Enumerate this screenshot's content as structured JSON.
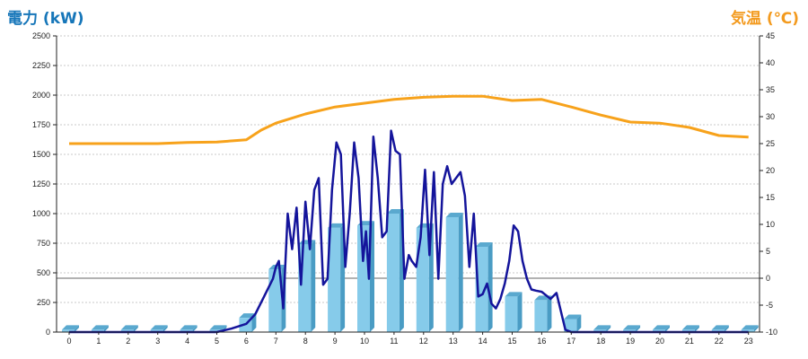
{
  "chart_data": {
    "type": "bar",
    "left_axis_title": "電力 (kW)",
    "right_axis_title": "気温 (℃)",
    "categories": [
      "0",
      "1",
      "2",
      "3",
      "4",
      "5",
      "6",
      "7",
      "8",
      "9",
      "10",
      "11",
      "12",
      "13",
      "14",
      "15",
      "16",
      "17",
      "18",
      "19",
      "20",
      "21",
      "22",
      "23"
    ],
    "y_left": {
      "min": 0,
      "max": 2500,
      "ticks": [
        "0",
        "250",
        "500",
        "750",
        "1000",
        "1250",
        "1500",
        "1750",
        "2000",
        "2250",
        "2500"
      ]
    },
    "y_right": {
      "min": -10,
      "max": 45,
      "ticks": [
        "-10",
        "-5",
        "0",
        "5",
        "10",
        "15",
        "20",
        "25",
        "30",
        "35",
        "40",
        "45"
      ]
    },
    "grid": true,
    "zero_line_right": 0,
    "colors": {
      "bars": "#86cbea",
      "bars_side": "#4a9cc4",
      "power_line": "#14149b",
      "temperature_line": "#f7a21b",
      "left_title": "#1676b9",
      "right_title": "#f39a1e"
    },
    "bar_values": [
      20,
      20,
      20,
      20,
      20,
      20,
      120,
      530,
      740,
      880,
      900,
      1000,
      880,
      970,
      720,
      300,
      270,
      110,
      20,
      20,
      20,
      20,
      20,
      20
    ],
    "power_line": {
      "x": [
        0,
        5,
        5.5,
        6,
        6.3,
        6.6,
        6.9,
        7,
        7.1,
        7.25,
        7.4,
        7.55,
        7.7,
        7.85,
        8,
        8.15,
        8.3,
        8.45,
        8.6,
        8.75,
        8.9,
        9.05,
        9.2,
        9.35,
        9.5,
        9.65,
        9.8,
        9.95,
        10.05,
        10.15,
        10.3,
        10.45,
        10.6,
        10.75,
        10.9,
        11.05,
        11.2,
        11.35,
        11.5,
        11.6,
        11.75,
        11.9,
        12.05,
        12.2,
        12.35,
        12.5,
        12.65,
        12.8,
        12.95,
        13.1,
        13.25,
        13.4,
        13.55,
        13.7,
        13.85,
        14,
        14.15,
        14.3,
        14.45,
        14.6,
        14.75,
        14.9,
        15.05,
        15.2,
        15.35,
        15.5,
        15.65,
        15.8,
        16,
        16.3,
        16.5,
        16.8,
        17,
        17.3,
        18,
        23
      ],
      "values": [
        0,
        0,
        30,
        70,
        150,
        300,
        450,
        550,
        600,
        200,
        1000,
        700,
        1050,
        400,
        1100,
        700,
        1200,
        1300,
        400,
        450,
        1200,
        1600,
        1500,
        550,
        1000,
        1600,
        1300,
        600,
        850,
        450,
        1650,
        1300,
        800,
        850,
        1700,
        1530,
        1500,
        450,
        650,
        600,
        550,
        800,
        1370,
        650,
        1350,
        450,
        1250,
        1400,
        1250,
        1300,
        1350,
        1150,
        550,
        1000,
        300,
        320,
        410,
        240,
        200,
        280,
        410,
        600,
        900,
        850,
        600,
        450,
        360,
        350,
        340,
        280,
        330,
        20,
        0,
        0,
        0,
        0
      ]
    },
    "temperature_line": {
      "x": [
        0,
        1,
        2,
        3,
        4,
        5,
        6,
        6.5,
        7,
        8,
        9,
        10,
        11,
        12,
        13,
        14,
        15,
        16,
        17,
        18,
        19,
        20,
        21,
        22,
        23
      ],
      "values": [
        25,
        25,
        25,
        25,
        25.2,
        25.3,
        25.7,
        27.5,
        28.8,
        30.5,
        31.8,
        32.5,
        33.2,
        33.6,
        33.8,
        33.8,
        33,
        33.2,
        31.8,
        30.3,
        29,
        28.8,
        28,
        26.5,
        26.2
      ]
    }
  }
}
